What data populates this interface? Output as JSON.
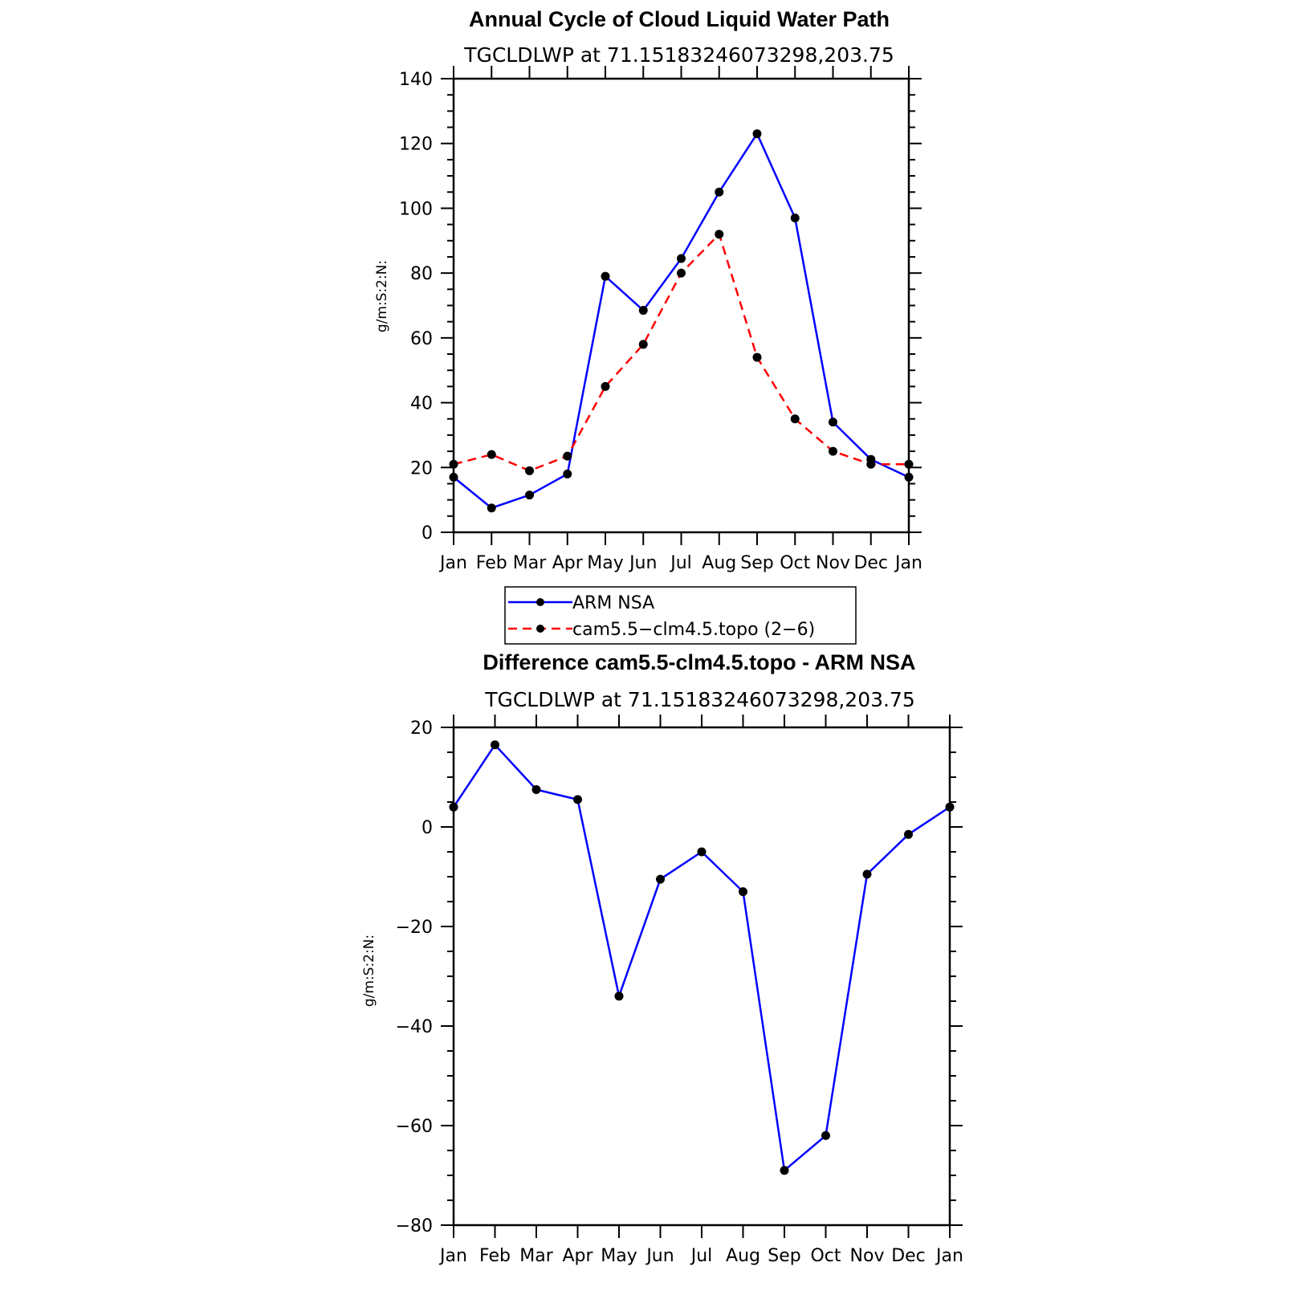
{
  "chart_data": [
    {
      "type": "line",
      "title": "Annual Cycle of Cloud Liquid Water Path",
      "subtitle": "TGCLDLWP  at  71.15183246073298,203.75",
      "xlabel": "",
      "ylabel": "g/m:S:2:N:",
      "categories": [
        "Jan",
        "Feb",
        "Mar",
        "Apr",
        "May",
        "Jun",
        "Jul",
        "Aug",
        "Sep",
        "Oct",
        "Nov",
        "Dec",
        "Jan"
      ],
      "ylim": [
        0,
        140
      ],
      "yticks": [
        0,
        20,
        40,
        60,
        80,
        100,
        120,
        140
      ],
      "series": [
        {
          "name": "ARM NSA",
          "color": "#0000ff",
          "dash": "solid",
          "values": [
            17,
            7.5,
            11.5,
            18,
            79,
            68.5,
            84.5,
            105,
            123,
            97,
            34,
            22.5,
            17
          ]
        },
        {
          "name": "cam5.5−clm4.5.topo (2−6)",
          "color": "#ff0000",
          "dash": "dashed",
          "values": [
            21,
            24,
            19,
            23.5,
            45,
            58,
            80,
            92,
            54,
            35,
            25,
            21,
            21
          ]
        }
      ],
      "legend": {
        "placement": "below",
        "entries": [
          "ARM NSA",
          "cam5.5−clm4.5.topo (2−6)"
        ]
      }
    },
    {
      "type": "line",
      "title": "Difference cam5.5-clm4.5.topo - ARM NSA",
      "subtitle": "TGCLDLWP  at  71.15183246073298,203.75",
      "xlabel": "",
      "ylabel": "g/m:S:2:N:",
      "categories": [
        "Jan",
        "Feb",
        "Mar",
        "Apr",
        "May",
        "Jun",
        "Jul",
        "Aug",
        "Sep",
        "Oct",
        "Nov",
        "Dec",
        "Jan"
      ],
      "ylim": [
        -80,
        20
      ],
      "yticks": [
        -80,
        -60,
        -40,
        -20,
        0,
        20
      ],
      "series": [
        {
          "name": "",
          "color": "#0000ff",
          "dash": "solid",
          "values": [
            4,
            16.5,
            7.5,
            5.5,
            -34,
            -10.5,
            -5,
            -13,
            -69,
            -62,
            -9.5,
            -1.5,
            4
          ]
        }
      ]
    }
  ]
}
